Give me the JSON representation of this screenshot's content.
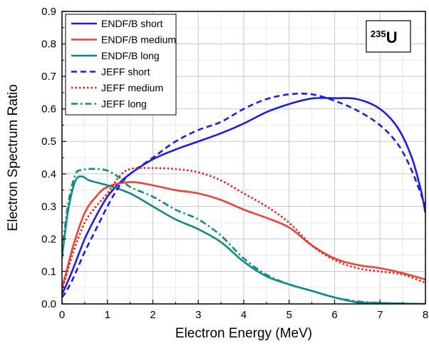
{
  "chart_data": {
    "type": "line",
    "xlabel": "Electron Energy (MeV)",
    "ylabel": "Electron Spectrum Ratio",
    "xlim": [
      0,
      8
    ],
    "ylim": [
      0,
      0.9
    ],
    "xticks": [
      "0",
      "1",
      "2",
      "3",
      "4",
      "5",
      "6",
      "7",
      "8"
    ],
    "yticks": [
      "0.0",
      "0.1",
      "0.2",
      "0.3",
      "0.4",
      "0.5",
      "0.6",
      "0.7",
      "0.8",
      "0.9"
    ],
    "grid": true,
    "legend_position": "top-left",
    "annotation": {
      "superscript": "235",
      "text": "U"
    },
    "series": [
      {
        "name": "ENDF/B short",
        "color": "#1f1fd9",
        "dash": "solid",
        "points": [
          [
            0,
            0.03
          ],
          [
            0.1,
            0.06
          ],
          [
            0.25,
            0.11
          ],
          [
            0.5,
            0.2
          ],
          [
            0.75,
            0.27
          ],
          [
            1,
            0.33
          ],
          [
            1.25,
            0.37
          ],
          [
            1.5,
            0.4
          ],
          [
            2,
            0.445
          ],
          [
            2.5,
            0.475
          ],
          [
            3,
            0.5
          ],
          [
            3.5,
            0.525
          ],
          [
            4,
            0.555
          ],
          [
            4.5,
            0.59
          ],
          [
            5,
            0.615
          ],
          [
            5.5,
            0.632
          ],
          [
            6,
            0.633
          ],
          [
            6.5,
            0.63
          ],
          [
            7,
            0.6
          ],
          [
            7.4,
            0.54
          ],
          [
            7.7,
            0.45
          ],
          [
            7.9,
            0.35
          ],
          [
            8,
            0.28
          ]
        ]
      },
      {
        "name": "ENDF/B medium",
        "color": "#e8443a",
        "dash": "solid",
        "points": [
          [
            0,
            0.05
          ],
          [
            0.1,
            0.1
          ],
          [
            0.25,
            0.18
          ],
          [
            0.5,
            0.28
          ],
          [
            0.75,
            0.33
          ],
          [
            1,
            0.36
          ],
          [
            1.5,
            0.375
          ],
          [
            2,
            0.365
          ],
          [
            2.5,
            0.35
          ],
          [
            3,
            0.34
          ],
          [
            3.5,
            0.32
          ],
          [
            4,
            0.29
          ],
          [
            4.5,
            0.265
          ],
          [
            5,
            0.235
          ],
          [
            5.5,
            0.18
          ],
          [
            6,
            0.14
          ],
          [
            6.5,
            0.12
          ],
          [
            7,
            0.11
          ],
          [
            7.5,
            0.095
          ],
          [
            8,
            0.075
          ]
        ]
      },
      {
        "name": "ENDF/B long",
        "color": "#108a87",
        "dash": "solid",
        "points": [
          [
            0,
            0.14
          ],
          [
            0.05,
            0.2
          ],
          [
            0.15,
            0.3
          ],
          [
            0.3,
            0.38
          ],
          [
            0.45,
            0.392
          ],
          [
            0.6,
            0.38
          ],
          [
            1,
            0.365
          ],
          [
            1.5,
            0.34
          ],
          [
            2,
            0.3
          ],
          [
            2.5,
            0.26
          ],
          [
            3,
            0.23
          ],
          [
            3.5,
            0.19
          ],
          [
            4,
            0.13
          ],
          [
            4.5,
            0.085
          ],
          [
            5,
            0.06
          ],
          [
            5.5,
            0.04
          ],
          [
            6,
            0.02
          ],
          [
            6.5,
            0.005
          ],
          [
            7,
            0.003
          ],
          [
            7.5,
            0.001
          ],
          [
            8,
            0
          ]
        ]
      },
      {
        "name": "JEFF short",
        "color": "#1f1fd9",
        "dash": "dashed",
        "points": [
          [
            0,
            0.02
          ],
          [
            0.1,
            0.04
          ],
          [
            0.25,
            0.08
          ],
          [
            0.5,
            0.16
          ],
          [
            0.75,
            0.23
          ],
          [
            1,
            0.3
          ],
          [
            1.25,
            0.36
          ],
          [
            1.5,
            0.4
          ],
          [
            2,
            0.45
          ],
          [
            2.5,
            0.5
          ],
          [
            3,
            0.535
          ],
          [
            3.5,
            0.56
          ],
          [
            4,
            0.6
          ],
          [
            4.5,
            0.63
          ],
          [
            5,
            0.645
          ],
          [
            5.5,
            0.645
          ],
          [
            6,
            0.625
          ],
          [
            6.5,
            0.595
          ],
          [
            7,
            0.55
          ],
          [
            7.4,
            0.49
          ],
          [
            7.7,
            0.41
          ],
          [
            8,
            0.3
          ]
        ]
      },
      {
        "name": "JEFF medium",
        "color": "#e8201c",
        "dash": "dotted",
        "points": [
          [
            0,
            0.04
          ],
          [
            0.1,
            0.09
          ],
          [
            0.25,
            0.16
          ],
          [
            0.5,
            0.25
          ],
          [
            0.75,
            0.3
          ],
          [
            1,
            0.34
          ],
          [
            1.25,
            0.39
          ],
          [
            1.5,
            0.415
          ],
          [
            2,
            0.418
          ],
          [
            2.5,
            0.415
          ],
          [
            3,
            0.405
          ],
          [
            3.5,
            0.38
          ],
          [
            4,
            0.34
          ],
          [
            4.5,
            0.3
          ],
          [
            5,
            0.25
          ],
          [
            5.5,
            0.18
          ],
          [
            6,
            0.135
          ],
          [
            6.5,
            0.11
          ],
          [
            7,
            0.1
          ],
          [
            7.5,
            0.09
          ],
          [
            8,
            0.065
          ]
        ]
      },
      {
        "name": "JEFF long",
        "color": "#108a87",
        "dash": "dashdot",
        "points": [
          [
            0,
            0.15
          ],
          [
            0.05,
            0.22
          ],
          [
            0.15,
            0.32
          ],
          [
            0.3,
            0.4
          ],
          [
            0.45,
            0.412
          ],
          [
            0.6,
            0.415
          ],
          [
            0.8,
            0.415
          ],
          [
            1,
            0.41
          ],
          [
            1.25,
            0.39
          ],
          [
            1.5,
            0.36
          ],
          [
            2,
            0.33
          ],
          [
            2.5,
            0.29
          ],
          [
            3,
            0.26
          ],
          [
            3.5,
            0.21
          ],
          [
            4,
            0.14
          ],
          [
            4.5,
            0.09
          ],
          [
            5,
            0.06
          ],
          [
            5.5,
            0.04
          ],
          [
            6,
            0.02
          ],
          [
            6.5,
            0.008
          ],
          [
            7,
            0.003
          ],
          [
            7.5,
            0.001
          ],
          [
            8,
            0
          ]
        ]
      }
    ]
  }
}
